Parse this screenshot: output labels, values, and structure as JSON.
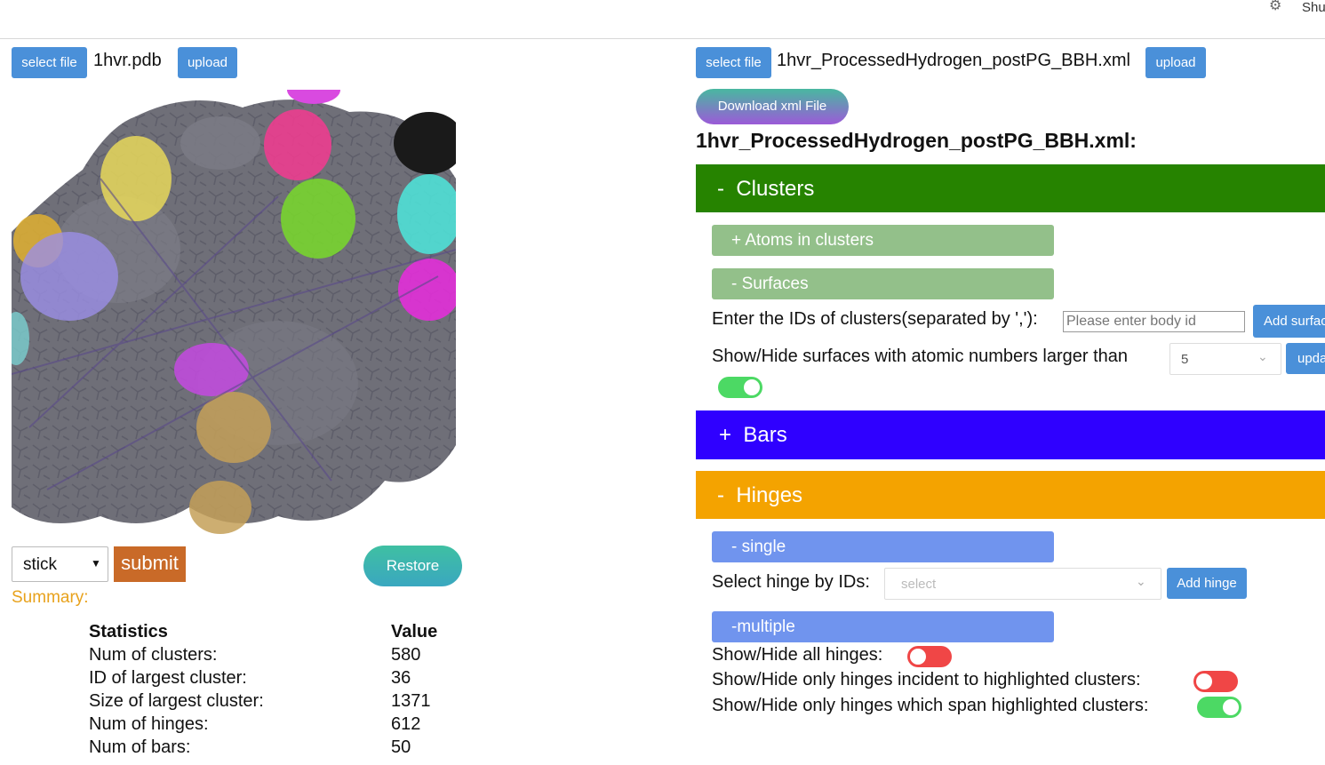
{
  "topbar": {
    "settings_icon": "gear-icon",
    "user_label": "Shu"
  },
  "left": {
    "select_file_label": "select file",
    "file_name": "1hvr.pdb",
    "upload_label": "upload",
    "style_select": {
      "value": "stick",
      "options": [
        "stick"
      ]
    },
    "submit_label": "submit",
    "restore_label": "Restore",
    "summary_label": "Summary:",
    "stats": {
      "header_stat": "Statistics",
      "header_value": "Value",
      "rows": [
        {
          "name": "Num of clusters:",
          "value": "580"
        },
        {
          "name": "ID of largest cluster:",
          "value": "36"
        },
        {
          "name": "Size of largest cluster:",
          "value": "1371"
        },
        {
          "name": "Num of hinges:",
          "value": "612"
        },
        {
          "name": "Num of bars:",
          "value": "50"
        }
      ]
    }
  },
  "right": {
    "select_file_label": "select file",
    "file_name": "1hvr_ProcessedHydrogen_postPG_BBH.xml",
    "upload_label": "upload",
    "download_label": "Download xml File",
    "heading": "1hvr_ProcessedHydrogen_postPG_BBH.xml:",
    "clusters": {
      "title": "-  Clusters",
      "color": "#268300",
      "atoms_label": "+ Atoms in clusters",
      "surfaces_label": "- Surfaces",
      "enter_ids_label": "Enter the IDs of clusters(separated by ','):",
      "body_id_placeholder": "Please enter body id",
      "add_surface_label": "Add surface",
      "show_hide_label": "Show/Hide surfaces with atomic numbers larger than",
      "threshold_value": "5",
      "update_label": "update",
      "surfaces_toggle_on": true
    },
    "bars": {
      "title": "+  Bars",
      "color": "#2f00ff"
    },
    "hinges": {
      "title": "-  Hinges",
      "color": "#f4a300",
      "single_label": "- single",
      "select_by_ids_label": "Select hinge by IDs:",
      "select_placeholder": "select",
      "add_hinge_label": "Add hinge",
      "multiple_label": "-multiple",
      "show_all_label": "Show/Hide all hinges:",
      "show_all_on": false,
      "incident_label": "Show/Hide only hinges incident to highlighted clusters:",
      "incident_on": false,
      "span_label": "Show/Hide only hinges which span highlighted clusters:",
      "span_on": true
    }
  },
  "colors": {
    "toggle_on": "#4cd964",
    "toggle_off": "#f04646",
    "submit": "#c96a28",
    "restore": "#3fb3a6"
  }
}
